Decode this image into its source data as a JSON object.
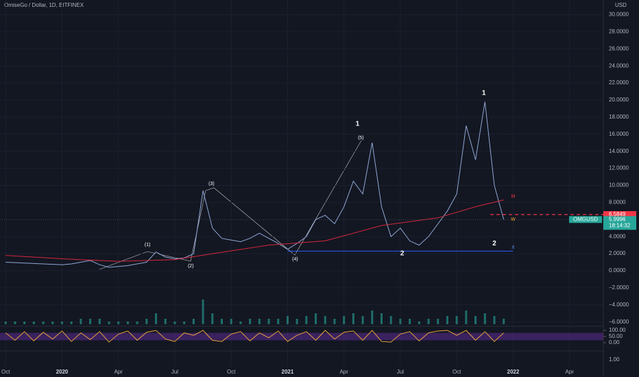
{
  "chart_data": {
    "type": "line",
    "title": "OmiseGo / Dollar, 1D, BITFINEX",
    "currency": "USD",
    "xlim": [
      -0.3,
      31.8
    ],
    "xticks": [
      {
        "value": 0,
        "label": "Oct"
      },
      {
        "value": 3,
        "label": "2020"
      },
      {
        "value": 6,
        "label": "Apr"
      },
      {
        "value": 9,
        "label": "Jul"
      },
      {
        "value": 12,
        "label": "Oct"
      },
      {
        "value": 15,
        "label": "2021"
      },
      {
        "value": 18,
        "label": "Apr"
      },
      {
        "value": 21,
        "label": "Jul"
      },
      {
        "value": 24,
        "label": "Oct"
      },
      {
        "value": 27,
        "label": "2022"
      },
      {
        "value": 30,
        "label": "Apr"
      }
    ],
    "ylim": [
      -6.43,
      31.73
    ],
    "yticks": [
      {
        "value": 30,
        "label": "30.0000"
      },
      {
        "value": 28,
        "label": "28.0000"
      },
      {
        "value": 26,
        "label": "26.0000"
      },
      {
        "value": 24,
        "label": "24.0000"
      },
      {
        "value": 22,
        "label": "22.0000"
      },
      {
        "value": 20,
        "label": "20.0000"
      },
      {
        "value": 18,
        "label": "18.0000"
      },
      {
        "value": 16,
        "label": "16.0000"
      },
      {
        "value": 14,
        "label": "14.0000"
      },
      {
        "value": 12,
        "label": "12.0000"
      },
      {
        "value": 10,
        "label": "10.0000"
      },
      {
        "value": 8,
        "label": "8.0000"
      },
      {
        "value": 4,
        "label": "4.0000"
      },
      {
        "value": 2,
        "label": "2.0000"
      },
      {
        "value": 0,
        "label": "0.0000"
      },
      {
        "value": -2,
        "label": "−2.0000"
      },
      {
        "value": -4,
        "label": "−4.0000"
      },
      {
        "value": -6,
        "label": "−6.0000"
      }
    ],
    "grid": true,
    "series": [
      {
        "name": "OMGUSD",
        "color": "#8fa7d6",
        "x": [
          0,
          0.5,
          1,
          1.5,
          2,
          2.5,
          3,
          3.5,
          4,
          4.5,
          5,
          5.5,
          6,
          6.5,
          7,
          7.5,
          8,
          8.5,
          9,
          9.5,
          10,
          10.5,
          11,
          11.5,
          12,
          12.5,
          13,
          13.5,
          14,
          14.5,
          15,
          15.5,
          16,
          16.5,
          17,
          17.5,
          18,
          18.5,
          19,
          19.5,
          20,
          20.5,
          21,
          21.5,
          22,
          22.5,
          23,
          23.5,
          24,
          24.5,
          25,
          25.5,
          26,
          26.5
        ],
        "values": [
          1.0,
          0.95,
          0.9,
          0.85,
          0.8,
          0.75,
          0.7,
          0.8,
          1.0,
          1.2,
          0.7,
          0.4,
          0.5,
          0.6,
          0.8,
          1.0,
          2.2,
          1.6,
          1.4,
          1.5,
          2.0,
          9.4,
          5.0,
          3.8,
          3.6,
          3.4,
          3.8,
          4.4,
          3.8,
          3.2,
          2.5,
          3.2,
          4.0,
          6.0,
          6.5,
          5.5,
          7.5,
          10.5,
          9.0,
          15.0,
          7.5,
          4.0,
          5.0,
          3.5,
          3.0,
          4.0,
          5.5,
          7.0,
          9.0,
          17.0,
          13.0,
          19.8,
          10.0,
          6.0
        ]
      },
      {
        "color": "#d7263d",
        "x": [
          0,
          3,
          6,
          9,
          11,
          14,
          17,
          20,
          23,
          25,
          26.5
        ],
        "values": [
          1.8,
          1.4,
          1.1,
          1.3,
          2.0,
          3.0,
          3.5,
          5.3,
          6.2,
          7.5,
          8.3
        ]
      }
    ],
    "volume": {
      "color": "#26a69a",
      "x": [
        0,
        0.5,
        1,
        1.5,
        2,
        2.5,
        3,
        3.5,
        4,
        4.5,
        5,
        5.5,
        6,
        6.5,
        7,
        7.5,
        8,
        8.5,
        9,
        9.5,
        10,
        10.5,
        11,
        11.5,
        12,
        12.5,
        13,
        13.5,
        14,
        14.5,
        15,
        15.5,
        16,
        16.5,
        17,
        17.5,
        18,
        18.5,
        19,
        19.5,
        20,
        20.5,
        21,
        21.5,
        22,
        22.5,
        23,
        23.5,
        24,
        24.5,
        25,
        25.5,
        26,
        26.5
      ],
      "values": [
        1,
        1,
        1,
        1,
        1,
        1,
        1,
        1,
        2,
        2,
        2,
        1,
        1,
        1,
        1,
        2,
        4,
        2,
        1,
        1,
        2,
        9,
        4,
        2,
        2,
        1,
        2,
        2,
        2,
        2,
        3,
        2,
        3,
        4,
        3,
        2,
        3,
        4,
        3,
        5,
        4,
        3,
        2,
        2,
        1,
        2,
        2,
        3,
        3,
        5,
        3,
        4,
        3,
        2
      ]
    },
    "stoch_rsi": {
      "color": "#e8a33d",
      "band_color": "#5b2c8f",
      "ylim": [
        0,
        100
      ],
      "yticks": [
        {
          "value": 100,
          "label": "100.00"
        },
        {
          "value": 50,
          "label": "50.00"
        },
        {
          "value": 0,
          "label": "0.00"
        }
      ],
      "x": [
        0,
        0.5,
        1,
        1.5,
        2,
        2.5,
        3,
        3.5,
        4,
        4.5,
        5,
        5.5,
        6,
        6.5,
        7,
        7.5,
        8,
        8.5,
        9,
        9.5,
        10,
        10.5,
        11,
        11.5,
        12,
        12.5,
        13,
        13.5,
        14,
        14.5,
        15,
        15.5,
        16,
        16.5,
        17,
        17.5,
        18,
        18.5,
        19,
        19.5,
        20,
        20.5,
        21,
        21.5,
        22,
        22.5,
        23,
        23.5,
        24,
        24.5,
        25,
        25.5,
        26,
        26.5
      ],
      "values": [
        80,
        20,
        90,
        15,
        85,
        30,
        95,
        10,
        80,
        25,
        90,
        5,
        70,
        95,
        20,
        85,
        100,
        30,
        10,
        80,
        60,
        100,
        20,
        10,
        70,
        90,
        15,
        80,
        40,
        95,
        10,
        60,
        90,
        20,
        100,
        30,
        85,
        95,
        20,
        100,
        10,
        5,
        70,
        90,
        15,
        80,
        95,
        100,
        60,
        100,
        20,
        90,
        10,
        80
      ]
    },
    "extra_axis_label": "1.00",
    "price_labels": [
      {
        "value": 6.5849,
        "label": "6.5849",
        "color": "#f23645"
      },
      {
        "value": 5.9996,
        "label": "5.9996",
        "color": "#26a69a"
      }
    ],
    "countdown": "18:14:32",
    "levels": [
      {
        "value": 2.3,
        "from": 15.0,
        "to": 27.0,
        "color": "#2962ff"
      }
    ],
    "annotations": [
      {
        "text": "(1)",
        "x": 7.55,
        "y": 3.05,
        "color": "#ffffff"
      },
      {
        "text": "(2)",
        "x": 9.85,
        "y": 0.56,
        "color": "#ffffff"
      },
      {
        "text": "(3)",
        "x": 10.95,
        "y": 10.2,
        "color": "#ffffff"
      },
      {
        "text": "(4)",
        "x": 15.4,
        "y": 1.37,
        "color": "#ffffff"
      },
      {
        "text": "(5)",
        "x": 18.9,
        "y": 15.58,
        "color": "#ffffff"
      },
      {
        "text": "1",
        "x": 18.72,
        "y": 17.19,
        "color": "#ffffff"
      },
      {
        "text": "1",
        "x": 25.44,
        "y": 20.8,
        "color": "#ffffff"
      },
      {
        "text": "2",
        "x": 21.1,
        "y": 2.0,
        "color": "#ffffff"
      },
      {
        "text": "2",
        "x": 26.0,
        "y": 3.2,
        "color": "#ffffff"
      },
      {
        "text": "W",
        "x": 27.0,
        "y": 6.0,
        "color": "#f5a623"
      },
      {
        "text": "X",
        "x": 27.0,
        "y": 2.7,
        "color": "#5b8def"
      },
      {
        "text": "M",
        "x": 27.0,
        "y": 8.7,
        "color": "#f23645"
      }
    ]
  }
}
